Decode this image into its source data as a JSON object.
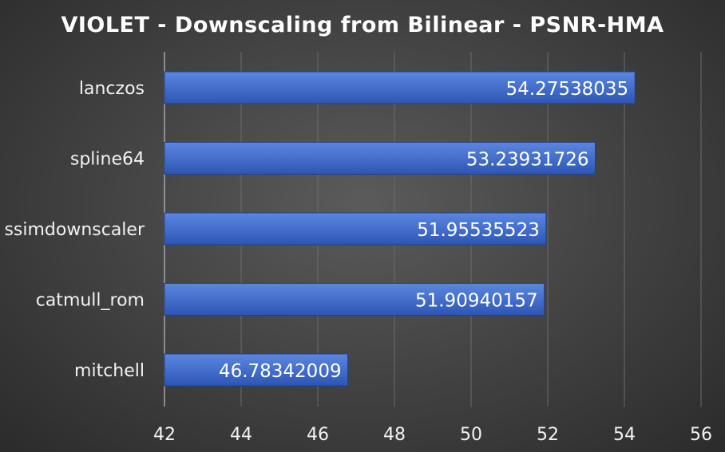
{
  "chart_data": {
    "type": "bar",
    "orientation": "horizontal",
    "title": "VIOLET - Downscaling from Bilinear - PSNR-HMA",
    "categories": [
      "lanczos",
      "spline64",
      "ssimdownscaler",
      "catmull_rom",
      "mitchell"
    ],
    "values": [
      54.27538035,
      53.23931726,
      51.95535523,
      51.90940157,
      46.78342009
    ],
    "data_labels": [
      "54.27538035",
      "53.23931726",
      "51.95535523",
      "51.90940157",
      "46.78342009"
    ],
    "xlim": [
      42,
      56
    ],
    "x_ticks": [
      "42",
      "44",
      "46",
      "48",
      "50",
      "52",
      "54",
      "56"
    ],
    "grid": true,
    "legend": "none",
    "colors": {
      "bar_top": "#5b87e0",
      "bar_bottom": "#2d56b4",
      "bar_edge": "#1f3f8f"
    }
  }
}
